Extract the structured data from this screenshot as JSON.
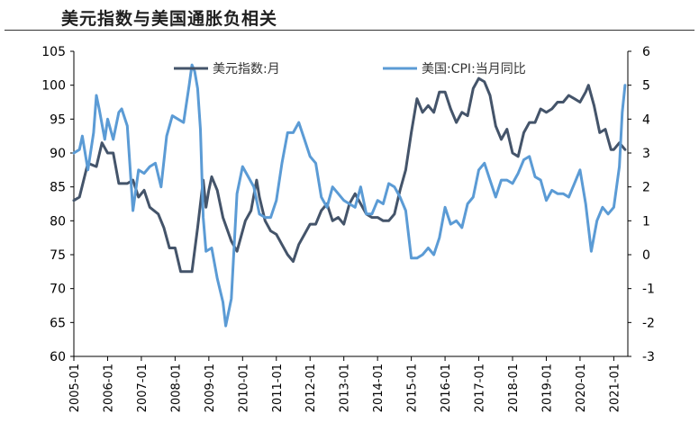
{
  "title": "美元指数与美国通胀负相关",
  "colors": {
    "dxy": "#44546a",
    "cpi": "#5b9bd5",
    "axis": "#000000"
  },
  "chart_data": {
    "type": "line",
    "title": "美元指数与美国通胀负相关",
    "x_axis": {
      "start": "2005-01",
      "end": "2021-06",
      "tick_labels": [
        "2005-01",
        "2006-01",
        "2007-01",
        "2008-01",
        "2009-01",
        "2010-01",
        "2011-01",
        "2012-01",
        "2013-01",
        "2014-01",
        "2015-01",
        "2016-01",
        "2017-01",
        "2018-01",
        "2019-01",
        "2020-01",
        "2021-01"
      ]
    },
    "y_left": {
      "min": 60,
      "max": 105,
      "step": 5,
      "tick_labels": [
        "60",
        "65",
        "70",
        "75",
        "80",
        "85",
        "90",
        "95",
        "100",
        "105"
      ]
    },
    "y_right": {
      "min": -3,
      "max": 6,
      "step": 1,
      "tick_labels": [
        "-3",
        "-2",
        "-1",
        "0",
        "1",
        "2",
        "3",
        "4",
        "5",
        "6"
      ]
    },
    "legend": {
      "placement": "top",
      "labels": [
        "美元指数:月",
        "美国:CPI:当月同比"
      ]
    },
    "series": [
      {
        "name": "美元指数:月",
        "axis": "left",
        "points": [
          [
            "2005-01",
            83.0
          ],
          [
            "2005-03",
            83.5
          ],
          [
            "2005-06",
            88.5
          ],
          [
            "2005-09",
            88.0
          ],
          [
            "2005-11",
            91.5
          ],
          [
            "2006-01",
            90.0
          ],
          [
            "2006-03",
            90.0
          ],
          [
            "2006-05",
            85.5
          ],
          [
            "2006-08",
            85.5
          ],
          [
            "2006-10",
            86.0
          ],
          [
            "2006-12",
            83.5
          ],
          [
            "2007-02",
            84.5
          ],
          [
            "2007-04",
            82.0
          ],
          [
            "2007-07",
            81.0
          ],
          [
            "2007-09",
            79.0
          ],
          [
            "2007-11",
            76.0
          ],
          [
            "2008-01",
            76.0
          ],
          [
            "2008-03",
            72.5
          ],
          [
            "2008-05",
            72.5
          ],
          [
            "2008-07",
            72.5
          ],
          [
            "2008-09",
            79.0
          ],
          [
            "2008-11",
            86.0
          ],
          [
            "2008-12",
            82.0
          ],
          [
            "2009-01",
            84.5
          ],
          [
            "2009-02",
            86.5
          ],
          [
            "2009-04",
            84.5
          ],
          [
            "2009-06",
            80.5
          ],
          [
            "2009-09",
            77.0
          ],
          [
            "2009-11",
            75.5
          ],
          [
            "2010-02",
            80.0
          ],
          [
            "2010-04",
            81.5
          ],
          [
            "2010-06",
            86.0
          ],
          [
            "2010-07",
            83.5
          ],
          [
            "2010-09",
            80.0
          ],
          [
            "2010-11",
            78.5
          ],
          [
            "2011-01",
            78.0
          ],
          [
            "2011-03",
            76.5
          ],
          [
            "2011-05",
            75.0
          ],
          [
            "2011-07",
            74.0
          ],
          [
            "2011-09",
            76.5
          ],
          [
            "2011-11",
            78.0
          ],
          [
            "2012-01",
            79.5
          ],
          [
            "2012-03",
            79.5
          ],
          [
            "2012-05",
            81.5
          ],
          [
            "2012-07",
            82.5
          ],
          [
            "2012-09",
            80.0
          ],
          [
            "2012-11",
            80.5
          ],
          [
            "2013-01",
            79.5
          ],
          [
            "2013-03",
            82.5
          ],
          [
            "2013-05",
            84.0
          ],
          [
            "2013-07",
            82.5
          ],
          [
            "2013-09",
            81.0
          ],
          [
            "2013-11",
            80.5
          ],
          [
            "2014-01",
            80.5
          ],
          [
            "2014-03",
            80.0
          ],
          [
            "2014-05",
            80.0
          ],
          [
            "2014-07",
            81.0
          ],
          [
            "2014-09",
            84.5
          ],
          [
            "2014-11",
            87.5
          ],
          [
            "2015-01",
            93.0
          ],
          [
            "2015-03",
            98.0
          ],
          [
            "2015-05",
            96.0
          ],
          [
            "2015-07",
            97.0
          ],
          [
            "2015-09",
            96.0
          ],
          [
            "2015-11",
            99.0
          ],
          [
            "2016-01",
            99.0
          ],
          [
            "2016-03",
            96.5
          ],
          [
            "2016-05",
            94.5
          ],
          [
            "2016-07",
            96.0
          ],
          [
            "2016-09",
            95.5
          ],
          [
            "2016-11",
            99.5
          ],
          [
            "2017-01",
            101.0
          ],
          [
            "2017-03",
            100.5
          ],
          [
            "2017-05",
            98.5
          ],
          [
            "2017-07",
            94.0
          ],
          [
            "2017-09",
            92.0
          ],
          [
            "2017-11",
            93.5
          ],
          [
            "2018-01",
            90.0
          ],
          [
            "2018-03",
            89.5
          ],
          [
            "2018-05",
            93.0
          ],
          [
            "2018-07",
            94.5
          ],
          [
            "2018-09",
            94.5
          ],
          [
            "2018-11",
            96.5
          ],
          [
            "2019-01",
            96.0
          ],
          [
            "2019-03",
            96.5
          ],
          [
            "2019-05",
            97.5
          ],
          [
            "2019-07",
            97.5
          ],
          [
            "2019-09",
            98.5
          ],
          [
            "2019-11",
            98.0
          ],
          [
            "2020-01",
            97.5
          ],
          [
            "2020-03",
            99.0
          ],
          [
            "2020-04",
            100.0
          ],
          [
            "2020-06",
            97.0
          ],
          [
            "2020-08",
            93.0
          ],
          [
            "2020-10",
            93.5
          ],
          [
            "2020-12",
            90.5
          ],
          [
            "2021-01",
            90.5
          ],
          [
            "2021-03",
            91.5
          ],
          [
            "2021-05",
            90.5
          ]
        ]
      },
      {
        "name": "美国:CPI:当月同比",
        "axis": "right",
        "points": [
          [
            "2005-01",
            3.0
          ],
          [
            "2005-03",
            3.1
          ],
          [
            "2005-04",
            3.5
          ],
          [
            "2005-06",
            2.5
          ],
          [
            "2005-08",
            3.6
          ],
          [
            "2005-09",
            4.7
          ],
          [
            "2005-10",
            4.3
          ],
          [
            "2005-12",
            3.4
          ],
          [
            "2006-01",
            4.0
          ],
          [
            "2006-03",
            3.4
          ],
          [
            "2006-05",
            4.2
          ],
          [
            "2006-06",
            4.3
          ],
          [
            "2006-08",
            3.8
          ],
          [
            "2006-10",
            1.3
          ],
          [
            "2006-12",
            2.5
          ],
          [
            "2007-02",
            2.4
          ],
          [
            "2007-04",
            2.6
          ],
          [
            "2007-06",
            2.7
          ],
          [
            "2007-08",
            2.0
          ],
          [
            "2007-10",
            3.5
          ],
          [
            "2007-12",
            4.1
          ],
          [
            "2008-02",
            4.0
          ],
          [
            "2008-04",
            3.9
          ],
          [
            "2008-06",
            5.0
          ],
          [
            "2008-07",
            5.6
          ],
          [
            "2008-08",
            5.4
          ],
          [
            "2008-09",
            4.9
          ],
          [
            "2008-10",
            3.7
          ],
          [
            "2008-11",
            1.1
          ],
          [
            "2008-12",
            0.1
          ],
          [
            "2009-02",
            0.2
          ],
          [
            "2009-04",
            -0.7
          ],
          [
            "2009-06",
            -1.4
          ],
          [
            "2009-07",
            -2.1
          ],
          [
            "2009-09",
            -1.3
          ],
          [
            "2009-11",
            1.8
          ],
          [
            "2010-01",
            2.6
          ],
          [
            "2010-03",
            2.3
          ],
          [
            "2010-05",
            2.0
          ],
          [
            "2010-07",
            1.2
          ],
          [
            "2010-09",
            1.1
          ],
          [
            "2010-11",
            1.1
          ],
          [
            "2011-01",
            1.6
          ],
          [
            "2011-03",
            2.7
          ],
          [
            "2011-05",
            3.6
          ],
          [
            "2011-07",
            3.6
          ],
          [
            "2011-09",
            3.9
          ],
          [
            "2011-11",
            3.4
          ],
          [
            "2012-01",
            2.9
          ],
          [
            "2012-03",
            2.7
          ],
          [
            "2012-05",
            1.7
          ],
          [
            "2012-07",
            1.4
          ],
          [
            "2012-09",
            2.0
          ],
          [
            "2012-11",
            1.8
          ],
          [
            "2013-01",
            1.6
          ],
          [
            "2013-03",
            1.5
          ],
          [
            "2013-05",
            1.4
          ],
          [
            "2013-07",
            2.0
          ],
          [
            "2013-09",
            1.2
          ],
          [
            "2013-11",
            1.2
          ],
          [
            "2014-01",
            1.6
          ],
          [
            "2014-03",
            1.5
          ],
          [
            "2014-05",
            2.1
          ],
          [
            "2014-07",
            2.0
          ],
          [
            "2014-09",
            1.7
          ],
          [
            "2014-11",
            1.3
          ],
          [
            "2015-01",
            -0.1
          ],
          [
            "2015-03",
            -0.1
          ],
          [
            "2015-05",
            0.0
          ],
          [
            "2015-07",
            0.2
          ],
          [
            "2015-09",
            0.0
          ],
          [
            "2015-11",
            0.5
          ],
          [
            "2016-01",
            1.4
          ],
          [
            "2016-03",
            0.9
          ],
          [
            "2016-05",
            1.0
          ],
          [
            "2016-07",
            0.8
          ],
          [
            "2016-09",
            1.5
          ],
          [
            "2016-11",
            1.7
          ],
          [
            "2017-01",
            2.5
          ],
          [
            "2017-03",
            2.7
          ],
          [
            "2017-05",
            2.2
          ],
          [
            "2017-07",
            1.7
          ],
          [
            "2017-09",
            2.2
          ],
          [
            "2017-11",
            2.2
          ],
          [
            "2018-01",
            2.1
          ],
          [
            "2018-03",
            2.4
          ],
          [
            "2018-05",
            2.8
          ],
          [
            "2018-07",
            2.9
          ],
          [
            "2018-09",
            2.3
          ],
          [
            "2018-11",
            2.2
          ],
          [
            "2019-01",
            1.6
          ],
          [
            "2019-03",
            1.9
          ],
          [
            "2019-05",
            1.8
          ],
          [
            "2019-07",
            1.8
          ],
          [
            "2019-09",
            1.7
          ],
          [
            "2019-11",
            2.1
          ],
          [
            "2020-01",
            2.5
          ],
          [
            "2020-03",
            1.5
          ],
          [
            "2020-05",
            0.1
          ],
          [
            "2020-07",
            1.0
          ],
          [
            "2020-09",
            1.4
          ],
          [
            "2020-11",
            1.2
          ],
          [
            "2021-01",
            1.4
          ],
          [
            "2021-03",
            2.6
          ],
          [
            "2021-04",
            4.2
          ],
          [
            "2021-05",
            5.0
          ]
        ]
      }
    ]
  }
}
